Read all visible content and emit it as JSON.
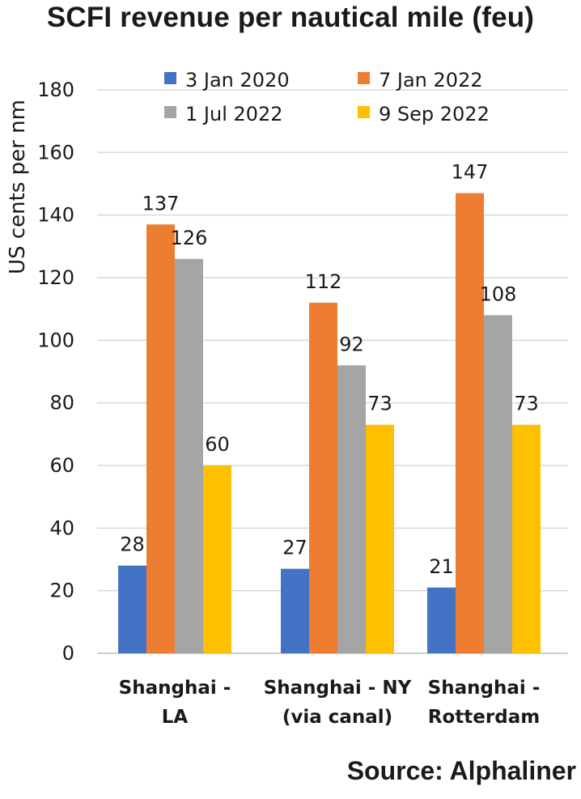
{
  "chart_data": {
    "type": "bar",
    "title": "SCFI revenue per nautical mile (feu)",
    "ylabel": "US cents per nm",
    "xlabel": "",
    "ylim": [
      0,
      180
    ],
    "yticks": [
      0,
      20,
      40,
      60,
      80,
      100,
      120,
      140,
      160,
      180
    ],
    "grid": true,
    "legend_position": "top",
    "categories": [
      [
        "Shanghai -",
        "LA"
      ],
      [
        "Shanghai - NY",
        "(via canal)"
      ],
      [
        "Shanghai -",
        "Rotterdam"
      ]
    ],
    "series": [
      {
        "name": "3 Jan 2020",
        "color": "#4472C4",
        "values": [
          28,
          27,
          21
        ]
      },
      {
        "name": "7 Jan 2022",
        "color": "#ED7D31",
        "values": [
          137,
          112,
          147
        ]
      },
      {
        "name": "1 Jul 2022",
        "color": "#A5A5A5",
        "values": [
          126,
          92,
          108
        ]
      },
      {
        "name": "9 Sep 2022",
        "color": "#FFC000",
        "values": [
          60,
          73,
          73
        ]
      }
    ],
    "source": "Source: Alphaliner"
  }
}
